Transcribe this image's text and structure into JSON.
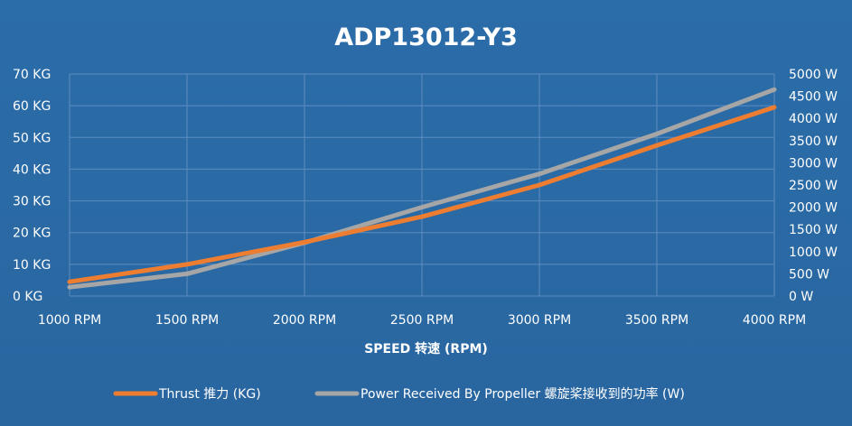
{
  "chart_data": {
    "type": "line",
    "title": "ADP13012-Y3",
    "xlabel": "SPEED 转速 (RPM)",
    "ylabel": "",
    "y2label": "",
    "categories": [
      "1000 RPM",
      "1500 RPM",
      "2000 RPM",
      "2500 RPM",
      "3000 RPM",
      "3500 RPM",
      "4000 RPM"
    ],
    "left_ticks": [
      "70 KG",
      "60 KG",
      "50 KG",
      "40 KG",
      "30 KG",
      "20 KG",
      "10 KG",
      "0 KG"
    ],
    "right_ticks": [
      "5000 W",
      "4500 W",
      "4000 W",
      "3500 W",
      "3000 W",
      "2500 W",
      "2000 W",
      "1500 W",
      "1000 W",
      "500 W",
      "0 W"
    ],
    "ylim": [
      0,
      70
    ],
    "y2lim": [
      0,
      5000
    ],
    "x": [
      1000,
      1500,
      2000,
      2500,
      3000,
      3500,
      4000
    ],
    "series": [
      {
        "name": "Thrust 推力 (KG)",
        "axis": "left",
        "values": [
          4.5,
          10,
          17,
          25,
          35,
          47.5,
          59.5
        ],
        "color": "#ed7d31"
      },
      {
        "name": "Power Received By Propeller 螺旋桨接收到的功率 (W)",
        "axis": "right",
        "values": [
          200,
          500,
          1200,
          2000,
          2750,
          3650,
          4650
        ],
        "color": "#a6a6a6"
      }
    ],
    "grid": true,
    "legend_position": "bottom"
  },
  "colors": {
    "background": "#2a6aa6",
    "grid": "#5d8dbf",
    "text": "#ffffff",
    "thrust": "#ed7d31",
    "power": "#a6a6a6"
  }
}
